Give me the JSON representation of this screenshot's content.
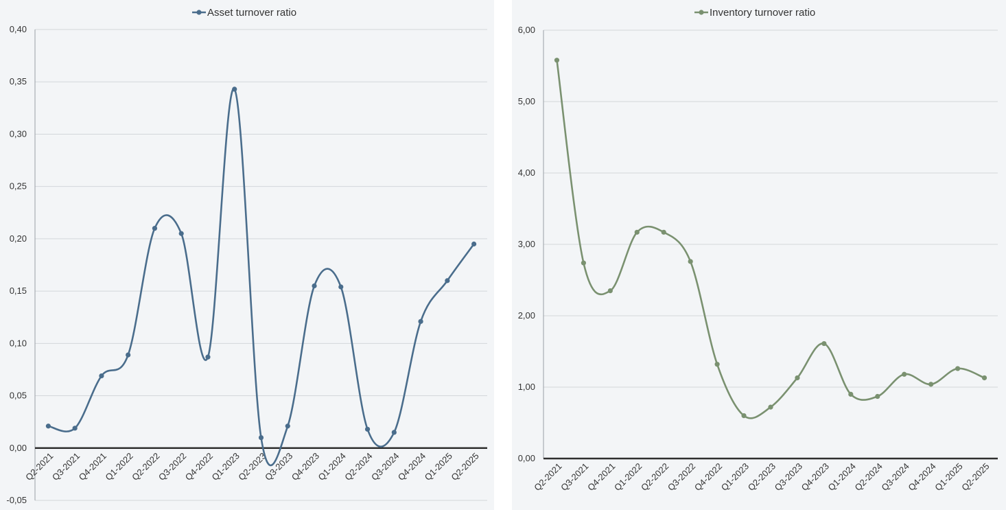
{
  "chart_data": [
    {
      "type": "line",
      "title": "",
      "xlabel": "",
      "ylabel": "",
      "categories": [
        "Q2-2021",
        "Q3-2021",
        "Q4-2021",
        "Q1-2022",
        "Q2-2022",
        "Q3-2022",
        "Q4-2022",
        "Q1-2023",
        "Q2-2023",
        "Q3-2023",
        "Q4-2023",
        "Q1-2024",
        "Q2-2024",
        "Q3-2024",
        "Q4-2024",
        "Q1-2025",
        "Q2-2025"
      ],
      "series": [
        {
          "name": "Asset turnover ratio",
          "color": "#4a6d8c",
          "values": [
            0.021,
            0.019,
            0.069,
            0.089,
            0.21,
            0.205,
            0.087,
            0.343,
            0.01,
            0.021,
            0.155,
            0.154,
            0.018,
            0.015,
            0.121,
            0.16,
            0.195
          ]
        }
      ],
      "ylim": [
        -0.05,
        0.4
      ],
      "yticks": [
        "0,40",
        "0,35",
        "0,30",
        "0,25",
        "0,20",
        "0,15",
        "0,10",
        "0,05",
        "0,00",
        "-0,05"
      ],
      "grid": true,
      "legend": "top-center",
      "smooth": true
    },
    {
      "type": "line",
      "title": "",
      "xlabel": "",
      "ylabel": "",
      "categories": [
        "Q2-2021",
        "Q3-2021",
        "Q4-2021",
        "Q1-2022",
        "Q2-2022",
        "Q3-2022",
        "Q4-2022",
        "Q1-2023",
        "Q2-2023",
        "Q3-2023",
        "Q4-2023",
        "Q1-2024",
        "Q2-2024",
        "Q3-2024",
        "Q4-2024",
        "Q1-2025",
        "Q2-2025"
      ],
      "series": [
        {
          "name": "Inventory turnover ratio",
          "color": "#7a9170",
          "values": [
            5.58,
            2.74,
            2.35,
            3.17,
            3.17,
            2.76,
            1.32,
            0.6,
            0.72,
            1.13,
            1.61,
            0.9,
            0.87,
            1.18,
            1.04,
            1.26,
            1.13
          ]
        }
      ],
      "ylim": [
        0,
        6
      ],
      "yticks": [
        "6,00",
        "5,00",
        "4,00",
        "3,00",
        "2,00",
        "1,00",
        "0,00"
      ],
      "grid": true,
      "legend": "top-center",
      "smooth": true
    }
  ]
}
